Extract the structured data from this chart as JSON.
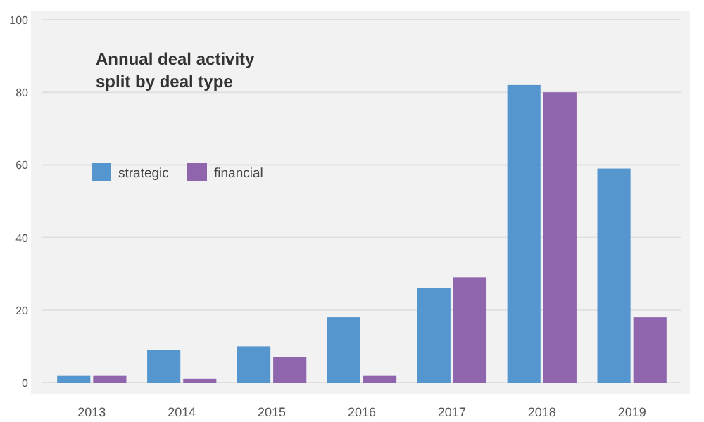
{
  "chart_data": {
    "type": "bar",
    "title": "Annual deal activity\nsplit by deal type",
    "categories": [
      "2013",
      "2014",
      "2015",
      "2016",
      "2017",
      "2018",
      "2019"
    ],
    "series": [
      {
        "name": "strategic",
        "color": "#5596cf",
        "values": [
          2,
          9,
          10,
          18,
          26,
          82,
          59
        ]
      },
      {
        "name": "financial",
        "color": "#8f66ad",
        "values": [
          2,
          1,
          7,
          2,
          29,
          80,
          18
        ]
      }
    ],
    "ylim": [
      0,
      100
    ],
    "yticks": [
      0,
      20,
      40,
      60,
      80,
      100
    ],
    "grid": "y",
    "legend": "top left"
  }
}
